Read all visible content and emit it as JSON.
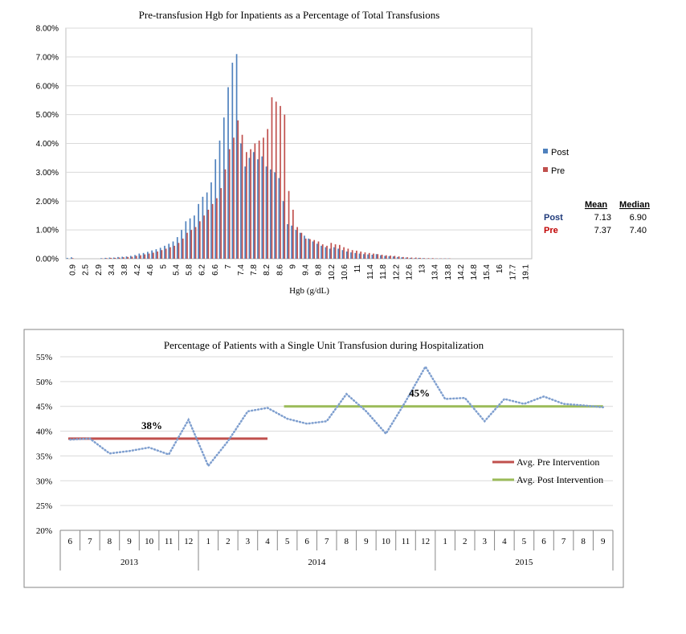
{
  "chart_data": [
    {
      "type": "bar",
      "title": "Pre-transfusion  Hgb for Inpatients  as a Percentage  of Total Transfusions",
      "xlabel": "Hgb (g/dL)",
      "ylabel": "",
      "ylim": [
        0,
        0.08
      ],
      "y_ticks": [
        "0.00%",
        "1.00%",
        "2.00%",
        "3.00%",
        "4.00%",
        "5.00%",
        "6.00%",
        "7.00%",
        "8.00%"
      ],
      "x_tick_labels": [
        "0.9",
        "2.5",
        "2.9",
        "3.4",
        "3.8",
        "4.2",
        "4.6",
        "5",
        "5.4",
        "5.8",
        "6.2",
        "6.6",
        "7",
        "7.4",
        "7.8",
        "8.2",
        "8.6",
        "9",
        "9.4",
        "9.8",
        "10.2",
        "10.6",
        "11",
        "11.4",
        "11.8",
        "12.2",
        "12.6",
        "13",
        "13.4",
        "13.8",
        "14.2",
        "14.8",
        "15.4",
        "16",
        "17.7",
        "19.1"
      ],
      "grid": true,
      "legend_position": "right",
      "colors": {
        "Post": "#4f81bd",
        "Pre": "#c0504d"
      },
      "series": [
        {
          "name": "Post",
          "values": [
            0.0003,
            0.0005,
            0,
            0,
            0,
            0,
            0,
            0,
            0.0002,
            0.0003,
            0.0004,
            0.0004,
            0.0006,
            0.0007,
            0.0008,
            0.001,
            0.0013,
            0.0018,
            0.002,
            0.0024,
            0.0029,
            0.0033,
            0.0038,
            0.0045,
            0.0052,
            0.006,
            0.0075,
            0.01,
            0.013,
            0.014,
            0.015,
            0.019,
            0.0215,
            0.023,
            0.0265,
            0.0345,
            0.041,
            0.049,
            0.0595,
            0.068,
            0.071,
            0.04,
            0.032,
            0.035,
            0.037,
            0.0345,
            0.0355,
            0.032,
            0.031,
            0.03,
            0.028,
            0.02,
            0.012,
            0.0115,
            0.01,
            0.009,
            0.008,
            0.007,
            0.006,
            0.0052,
            0.0045,
            0.004,
            0.0035,
            0.004,
            0.0035,
            0.003,
            0.0025,
            0.0022,
            0.002,
            0.0018,
            0.0016,
            0.0015,
            0.0014,
            0.0016,
            0.0012,
            0.001,
            0.0009,
            0.0008,
            0.0006,
            0.0005,
            0.0004,
            0.0003,
            0.0002,
            0.0003,
            0.0002,
            0.0001,
            0.0001,
            0.0001,
            0.0001,
            0.0001,
            0.0001,
            0,
            0,
            0,
            0,
            0,
            0,
            0,
            0,
            0,
            0,
            0,
            0,
            0,
            0,
            0,
            0,
            0,
            0,
            0
          ]
        },
        {
          "name": "Pre",
          "values": [
            0,
            0.0002,
            0,
            0,
            0,
            0,
            0,
            0,
            0.0001,
            0.0002,
            0.0003,
            0.0003,
            0.0004,
            0.0005,
            0.0006,
            0.0007,
            0.001,
            0.0012,
            0.0015,
            0.0018,
            0.0021,
            0.0025,
            0.003,
            0.0035,
            0.004,
            0.0045,
            0.0055,
            0.007,
            0.009,
            0.01,
            0.011,
            0.013,
            0.015,
            0.017,
            0.019,
            0.021,
            0.0245,
            0.031,
            0.038,
            0.042,
            0.048,
            0.043,
            0.037,
            0.038,
            0.04,
            0.041,
            0.042,
            0.045,
            0.056,
            0.0545,
            0.053,
            0.05,
            0.0235,
            0.017,
            0.011,
            0.009,
            0.007,
            0.0068,
            0.0065,
            0.006,
            0.005,
            0.0045,
            0.0055,
            0.005,
            0.0048,
            0.004,
            0.0035,
            0.003,
            0.0028,
            0.0025,
            0.0022,
            0.002,
            0.0018,
            0.0016,
            0.0014,
            0.0012,
            0.0011,
            0.001,
            0.0008,
            0.0006,
            0.0005,
            0.0004,
            0.0004,
            0.0003,
            0.0002,
            0.0002,
            0.0002,
            0.0001,
            0.0001,
            0.0001,
            0.0001,
            0,
            0,
            0,
            0,
            0,
            0,
            0,
            0,
            0,
            0,
            0,
            0,
            0,
            0,
            0,
            0,
            0,
            0
          ]
        }
      ],
      "stats_table": {
        "headers": [
          "Mean",
          "Median"
        ],
        "rows": [
          {
            "label": "Post",
            "mean": "7.13",
            "median": "6.90"
          },
          {
            "label": "Pre",
            "mean": "7.37",
            "median": "7.40"
          }
        ]
      }
    },
    {
      "type": "line",
      "title": "Percentage  of Patients  with  a Single  Unit  Transfusion  during  Hospitalization",
      "xlabel": "",
      "ylabel": "",
      "ylim": [
        0.2,
        0.55
      ],
      "y_ticks": [
        "20%",
        "25%",
        "30%",
        "35%",
        "40%",
        "45%",
        "50%",
        "55%"
      ],
      "grid": true,
      "legend_position": "right",
      "categories": [
        "6",
        "7",
        "8",
        "9",
        "10",
        "11",
        "12",
        "1",
        "2",
        "3",
        "4",
        "5",
        "6",
        "7",
        "8",
        "9",
        "10",
        "11",
        "12",
        "1",
        "2",
        "3",
        "4",
        "5",
        "6",
        "7",
        "8",
        "9"
      ],
      "year_groups": [
        {
          "label": "2013",
          "count": 7
        },
        {
          "label": "2014",
          "count": 12
        },
        {
          "label": "2015",
          "count": 9
        }
      ],
      "series": [
        {
          "name": "",
          "style": "dotted",
          "color": "#7f9fcf",
          "values": [
            0.383,
            0.385,
            0.355,
            0.36,
            0.367,
            0.353,
            0.423,
            0.33,
            0.38,
            0.44,
            0.447,
            0.425,
            0.415,
            0.42,
            0.475,
            0.44,
            0.395,
            0.46,
            0.53,
            0.465,
            0.467,
            0.42,
            0.465,
            0.455,
            0.47,
            0.455,
            0.452,
            0.448
          ]
        }
      ],
      "averages": [
        {
          "name": "Avg. Pre Intervention",
          "value": 0.385,
          "label": "38%",
          "start_index": 0,
          "end_index": 10,
          "color": "#c0504d"
        },
        {
          "name": "Avg. Post Intervention",
          "value": 0.45,
          "label": "45%",
          "start_index": 11,
          "end_index": 27,
          "color": "#9bbb59"
        }
      ]
    }
  ]
}
